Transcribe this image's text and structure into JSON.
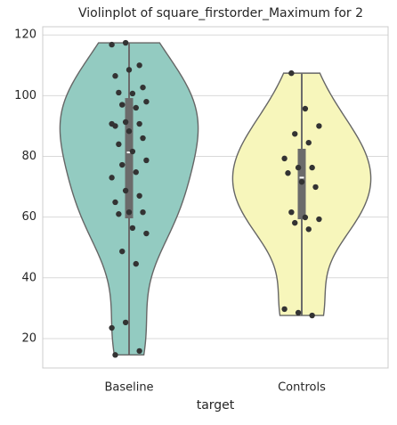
{
  "chart_data": {
    "type": "violin",
    "title": "Violinplot of square_firstorder_Maximum for 2",
    "x_label": "target",
    "series": [
      {
        "name": "Baseline",
        "color": "#93cbc1",
        "values": [
          116.8,
          117.4,
          110,
          106.5,
          108.5,
          102.7,
          101,
          100.7,
          98,
          97,
          96,
          90.7,
          91.3,
          90.7,
          90,
          88.3,
          86,
          84,
          81.6,
          78.7,
          77.2,
          74.8,
          73,
          68.7,
          67,
          64.9,
          61.6,
          61.6,
          61,
          56.4,
          54.6,
          48.7,
          44.6,
          23.5,
          25.3,
          15.9,
          14.6
        ],
        "q1": 59.6,
        "median": 81.3,
        "q3": 99.2,
        "whisker_low": 14.6,
        "whisker_high": 117.4
      },
      {
        "name": "Controls",
        "color": "#f7f6bb",
        "values": [
          107.4,
          95.7,
          90,
          87.4,
          84.5,
          79.3,
          76.3,
          76.3,
          74.5,
          71.6,
          69.9,
          61.6,
          59.9,
          59.3,
          58.1,
          56,
          29.7,
          28.5,
          27.6
        ],
        "q1": 59.3,
        "median": 73,
        "q3": 82.5,
        "whisker_low": 27.6,
        "whisker_high": 107.4
      }
    ],
    "ylim": [
      10.3,
      122.7
    ],
    "yticks": [
      20,
      40,
      60,
      80,
      100,
      120
    ],
    "grid": true
  }
}
